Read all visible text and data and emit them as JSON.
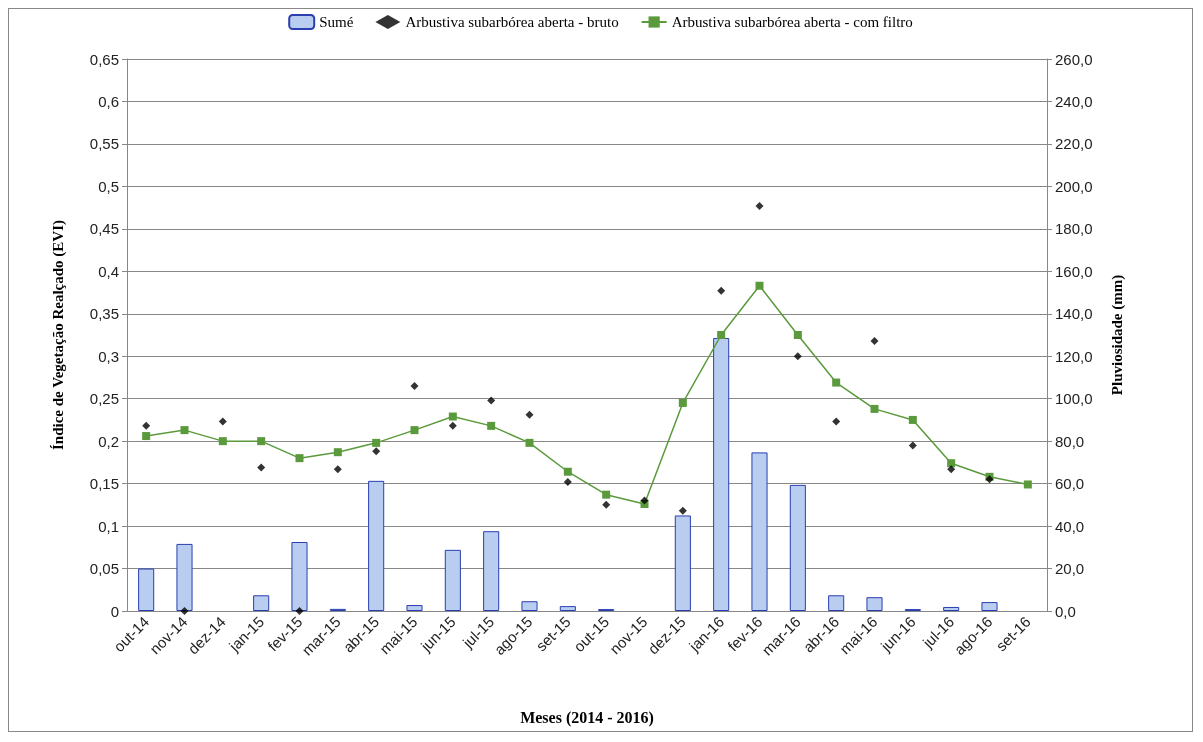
{
  "chart_data": {
    "type": "bar",
    "xlabel": "Meses (2014 - 2016)",
    "ylabel": "Índice de Vegetação Realçado (EVI)",
    "y2label": "Pluviosidade (mm)",
    "categories": [
      "out-14",
      "nov-14",
      "dez-14",
      "jan-15",
      "fev-15",
      "mar-15",
      "abr-15",
      "mai-15",
      "jun-15",
      "jul-15",
      "ago-15",
      "set-15",
      "out-15",
      "nov-15",
      "dez-15",
      "jan-16",
      "fev-16",
      "mar-16",
      "abr-16",
      "mai-16",
      "jun-16",
      "jul-16",
      "ago-16",
      "set-16"
    ],
    "series": [
      {
        "name": "Sumé",
        "axis": "y2",
        "color": "#b9cdf0",
        "values": [
          20.0,
          31.6,
          0,
          7.4,
          32.5,
          1.0,
          61.3,
          2.8,
          28.8,
          37.6,
          4.6,
          2.3,
          0.9,
          0,
          45.0,
          128.6,
          74.7,
          59.4,
          7.4,
          6.5,
          0.9,
          1.9,
          4.2,
          0
        ]
      },
      {
        "name": "Arbustiva subarbórea aberta - bruto",
        "type": "scatter",
        "marker": "diamond",
        "color": "#000000",
        "values": [
          0.218,
          0,
          0.223,
          0.169,
          0,
          0.167,
          0.188,
          0.265,
          0.218,
          0.248,
          0.231,
          0.152,
          0.125,
          0.13,
          0.118,
          0.377,
          0.477,
          0.3,
          0.223,
          0.318,
          0.195,
          0.167,
          0.155,
          null
        ]
      },
      {
        "name": "Arbustiva subarbórea aberta - com filtro",
        "type": "line",
        "marker": "square",
        "line_style": "solid",
        "color": "#5a9a3c",
        "values": [
          0.206,
          0.213,
          0.2,
          0.2,
          0.18,
          0.187,
          0.198,
          0.213,
          0.229,
          0.218,
          0.198,
          0.164,
          0.137,
          0.126,
          0.245,
          0.325,
          0.383,
          0.325,
          0.269,
          0.238,
          0.225,
          0.174,
          0.158,
          0.149
        ]
      }
    ],
    "ylim": [
      0,
      0.65
    ],
    "yticks": [
      0,
      {
        "value": 0.05,
        "label": "0,05"
      },
      {
        "value": 0.1,
        "label": "0,1"
      },
      {
        "value": 0.15,
        "label": "0,15"
      },
      {
        "value": 0.2,
        "label": "0,2"
      },
      {
        "value": 0.25,
        "label": "0,25"
      },
      {
        "value": 0.3,
        "label": "0,3"
      },
      {
        "value": 0.35,
        "label": "0,35"
      },
      {
        "value": 0.4,
        "label": "0,4"
      },
      {
        "value": 0.45,
        "label": "0,45"
      },
      {
        "value": 0.5,
        "label": "0,5"
      },
      {
        "value": 0.55,
        "label": "0,55"
      },
      {
        "value": 0.6,
        "label": "0,6"
      },
      {
        "value": 0.65,
        "label": "0,65"
      }
    ],
    "y2lim": [
      0,
      260
    ],
    "y2ticks": [
      {
        "value": 0,
        "label": "0,0"
      },
      {
        "value": 20,
        "label": "20,0"
      },
      {
        "value": 40,
        "label": "40,0"
      },
      {
        "value": 60,
        "label": "60,0"
      },
      {
        "value": 80,
        "label": "80,0"
      },
      {
        "value": 100,
        "label": "100,0"
      },
      {
        "value": 120,
        "label": "120,0"
      },
      {
        "value": 140,
        "label": "140,0"
      },
      {
        "value": 160,
        "label": "160,0"
      },
      {
        "value": 180,
        "label": "180,0"
      },
      {
        "value": 200,
        "label": "200,0"
      },
      {
        "value": 220,
        "label": "220,0"
      },
      {
        "value": 240,
        "label": "240,0"
      },
      {
        "value": 260,
        "label": "260,0"
      }
    ],
    "grid": "y",
    "legend": "top"
  }
}
